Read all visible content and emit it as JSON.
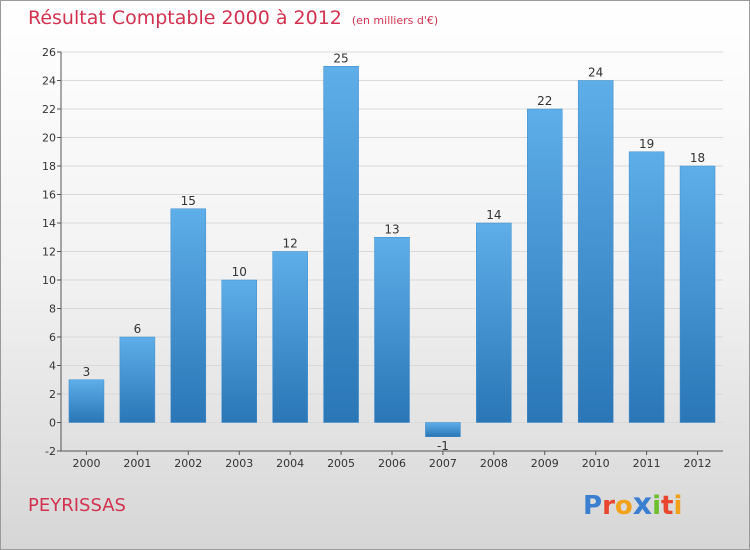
{
  "header": {
    "title": "Résultat Comptable 2000 à 2012",
    "subtitle": "(en milliers d'€)"
  },
  "footer": {
    "commune": "PEYRISSAS",
    "logo_letters": [
      "P",
      "r",
      "o",
      "x",
      "i",
      "t",
      "i"
    ],
    "logo_colors": [
      "#3a7fd0",
      "#e8462e",
      "#f2a21a",
      "#3a7fd0",
      "#6cbf2e",
      "#e8462e",
      "#f2a21a"
    ]
  },
  "colors": {
    "bar_light": "#5eaee9",
    "bar_dark": "#2a76b6",
    "grid": "#d9d9d9",
    "axis": "#555555"
  },
  "chart_data": {
    "type": "bar",
    "title": "Résultat Comptable 2000 à 2012",
    "subtitle": "(en milliers d'€)",
    "xlabel": "",
    "ylabel": "",
    "categories": [
      "2000",
      "2001",
      "2002",
      "2003",
      "2004",
      "2005",
      "2006",
      "2007",
      "2008",
      "2009",
      "2010",
      "2011",
      "2012"
    ],
    "values": [
      3,
      6,
      15,
      10,
      12,
      25,
      13,
      -1,
      14,
      22,
      24,
      19,
      18
    ],
    "ylim": [
      -2,
      26
    ],
    "yticks": [
      -2,
      0,
      2,
      4,
      6,
      8,
      10,
      12,
      14,
      16,
      18,
      20,
      22,
      24,
      26
    ],
    "grid": true,
    "legend": "none"
  }
}
